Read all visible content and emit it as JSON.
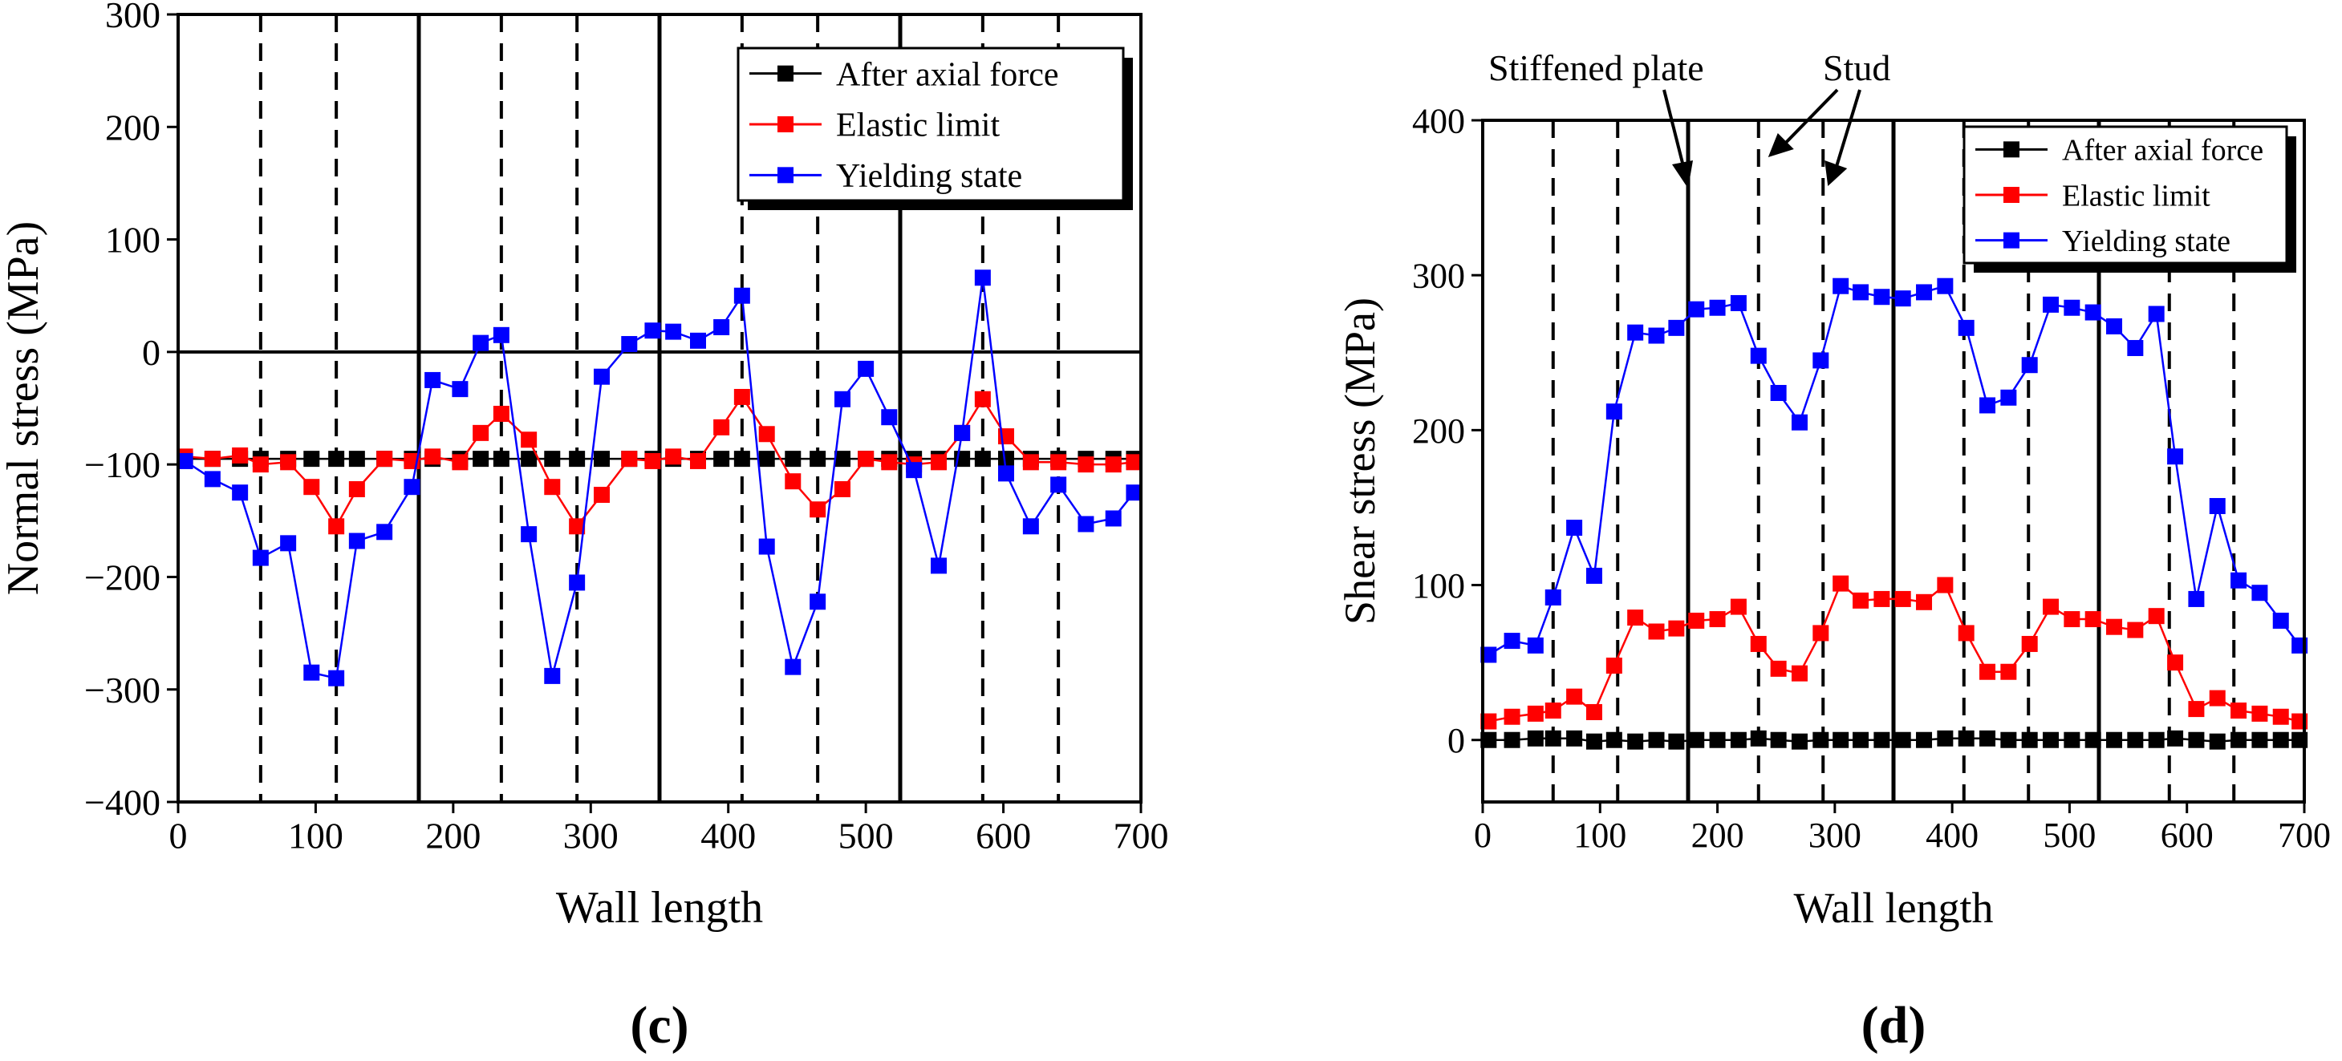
{
  "chart_data": [
    {
      "type": "line",
      "panel_label": "(c)",
      "title": "",
      "xlabel": "Wall length",
      "ylabel": "Normal stress (MPa)",
      "xlim": [
        0,
        700
      ],
      "ylim": [
        -400,
        300
      ],
      "xticks": [
        0,
        100,
        200,
        300,
        400,
        500,
        600,
        700
      ],
      "yticks": [
        -400,
        -300,
        -200,
        -100,
        0,
        100,
        200,
        300
      ],
      "zero_line": true,
      "dashed_lines_x": [
        60,
        115,
        235,
        290,
        410,
        465,
        585,
        640
      ],
      "solid_lines_x": [
        175,
        350,
        525
      ],
      "legend_position": "top-right",
      "series": [
        {
          "name": "After axial force",
          "color": "#000000",
          "x": [
            5,
            25,
            45,
            60,
            80,
            97,
            115,
            130,
            150,
            170,
            185,
            205,
            220,
            235,
            255,
            272,
            290,
            308,
            328,
            345,
            360,
            378,
            395,
            410,
            428,
            447,
            465,
            483,
            500,
            517,
            535,
            553,
            570,
            585,
            602,
            620,
            640,
            660,
            680,
            695
          ],
          "y": [
            -95,
            -95,
            -95,
            -95,
            -95,
            -95,
            -95,
            -95,
            -95,
            -95,
            -95,
            -95,
            -95,
            -95,
            -95,
            -95,
            -95,
            -95,
            -95,
            -95,
            -95,
            -95,
            -95,
            -95,
            -95,
            -95,
            -95,
            -95,
            -95,
            -95,
            -95,
            -95,
            -95,
            -95,
            -95,
            -95,
            -95,
            -95,
            -95,
            -95
          ]
        },
        {
          "name": "Elastic limit",
          "color": "#ff0000",
          "x": [
            5,
            25,
            45,
            60,
            80,
            97,
            115,
            130,
            150,
            170,
            185,
            205,
            220,
            235,
            255,
            272,
            290,
            308,
            328,
            345,
            360,
            378,
            395,
            410,
            428,
            447,
            465,
            483,
            500,
            517,
            535,
            553,
            570,
            585,
            602,
            620,
            640,
            660,
            680,
            695
          ],
          "y": [
            -93,
            -95,
            -92,
            -100,
            -98,
            -120,
            -155,
            -122,
            -95,
            -97,
            -93,
            -98,
            -72,
            -55,
            -78,
            -120,
            -155,
            -127,
            -95,
            -97,
            -93,
            -97,
            -67,
            -40,
            -73,
            -115,
            -140,
            -122,
            -95,
            -98,
            -100,
            -98,
            -72,
            -42,
            -75,
            -98,
            -98,
            -100,
            -100,
            -98
          ]
        },
        {
          "name": "Yielding state",
          "color": "#0000ff",
          "x": [
            5,
            25,
            45,
            60,
            80,
            97,
            115,
            130,
            150,
            170,
            185,
            205,
            220,
            235,
            255,
            272,
            290,
            308,
            328,
            345,
            360,
            378,
            395,
            410,
            428,
            447,
            465,
            483,
            500,
            517,
            535,
            553,
            570,
            585,
            602,
            620,
            640,
            660,
            680,
            695
          ],
          "y": [
            -97,
            -113,
            -125,
            -183,
            -170,
            -285,
            -290,
            -168,
            -160,
            -120,
            -25,
            -33,
            8,
            15,
            -162,
            -288,
            -205,
            -22,
            7,
            19,
            18,
            10,
            22,
            50,
            -173,
            -280,
            -222,
            -42,
            -15,
            -58,
            -105,
            -190,
            -72,
            66,
            -108,
            -155,
            -118,
            -153,
            -148,
            -125
          ]
        }
      ]
    },
    {
      "type": "line",
      "panel_label": "(d)",
      "title": "",
      "xlabel": "Wall length",
      "ylabel": "Shear stress (MPa)",
      "xlim": [
        0,
        700
      ],
      "ylim": [
        -40,
        400
      ],
      "xticks": [
        0,
        100,
        200,
        300,
        400,
        500,
        600,
        700
      ],
      "yticks": [
        0,
        100,
        200,
        300,
        400
      ],
      "zero_line": false,
      "dashed_lines_x": [
        60,
        115,
        235,
        290,
        410,
        465,
        585,
        640
      ],
      "solid_lines_x": [
        175,
        350,
        525
      ],
      "legend_position": "top-right",
      "annotations": [
        {
          "text": "Stiffened plate",
          "points_to_x": 175
        },
        {
          "text": "Stud",
          "points_to_x": [
            235,
            290
          ]
        }
      ],
      "series": [
        {
          "name": "After axial force",
          "color": "#000000",
          "x": [
            5,
            25,
            45,
            60,
            78,
            95,
            112,
            130,
            148,
            165,
            182,
            200,
            218,
            235,
            252,
            270,
            288,
            305,
            322,
            340,
            358,
            376,
            394,
            412,
            430,
            448,
            466,
            484,
            502,
            520,
            538,
            556,
            574,
            590,
            608,
            626,
            644,
            662,
            680,
            696
          ],
          "y": [
            0,
            0,
            1,
            1,
            1,
            -1,
            0,
            -1,
            0,
            -1,
            0,
            0,
            0,
            1,
            0,
            -1,
            0,
            0,
            0,
            0,
            0,
            0,
            1,
            1,
            1,
            0,
            0,
            0,
            0,
            0,
            0,
            0,
            0,
            1,
            0,
            -1,
            0,
            0,
            0,
            0
          ]
        },
        {
          "name": "Elastic limit",
          "color": "#ff0000",
          "x": [
            5,
            25,
            45,
            60,
            78,
            95,
            112,
            130,
            148,
            165,
            182,
            200,
            218,
            235,
            252,
            270,
            288,
            305,
            322,
            340,
            358,
            376,
            394,
            412,
            430,
            448,
            466,
            484,
            502,
            520,
            538,
            556,
            574,
            590,
            608,
            626,
            644,
            662,
            680,
            696
          ],
          "y": [
            12,
            15,
            17,
            19,
            28,
            18,
            48,
            79,
            70,
            72,
            77,
            78,
            86,
            62,
            46,
            43,
            69,
            101,
            90,
            91,
            91,
            89,
            100,
            69,
            44,
            44,
            62,
            86,
            78,
            78,
            73,
            71,
            80,
            50,
            20,
            27,
            19,
            17,
            15,
            12
          ]
        },
        {
          "name": "Yielding state",
          "color": "#0000ff",
          "x": [
            5,
            25,
            45,
            60,
            78,
            95,
            112,
            130,
            148,
            165,
            182,
            200,
            218,
            235,
            252,
            270,
            288,
            305,
            322,
            340,
            358,
            376,
            394,
            412,
            430,
            448,
            466,
            484,
            502,
            520,
            538,
            556,
            574,
            590,
            608,
            626,
            644,
            662,
            680,
            696
          ],
          "y": [
            55,
            64,
            61,
            92,
            137,
            106,
            212,
            263,
            261,
            266,
            278,
            279,
            282,
            248,
            224,
            205,
            245,
            293,
            289,
            286,
            285,
            289,
            293,
            266,
            216,
            221,
            242,
            281,
            279,
            276,
            267,
            253,
            275,
            183,
            91,
            151,
            103,
            95,
            77,
            61
          ]
        }
      ]
    }
  ]
}
